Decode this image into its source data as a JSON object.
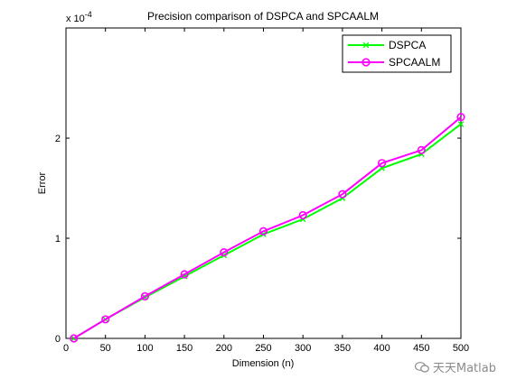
{
  "chart_data": {
    "type": "line",
    "title": "Precision comparison of DSPCA and SPCAALM",
    "xlabel": "Dimension (n)",
    "ylabel": "Error",
    "y_exponent_label": "x 10",
    "y_exponent_power": "-4",
    "xlim": [
      0,
      500
    ],
    "ylim": [
      0,
      3.1
    ],
    "xticks": [
      0,
      50,
      100,
      150,
      200,
      250,
      300,
      350,
      400,
      450,
      500
    ],
    "yticks": [
      0,
      1,
      2
    ],
    "grid": false,
    "legend_position": "top-right",
    "x": [
      10,
      50,
      100,
      150,
      200,
      250,
      300,
      350,
      400,
      450,
      500
    ],
    "series": [
      {
        "name": "DSPCA",
        "color": "#00ff00",
        "marker": "x",
        "values": [
          0.0,
          0.19,
          0.41,
          0.62,
          0.83,
          1.04,
          1.19,
          1.4,
          1.7,
          1.84,
          2.14
        ]
      },
      {
        "name": "SPCAALM",
        "color": "#ff00ff",
        "marker": "o",
        "values": [
          0.0,
          0.19,
          0.42,
          0.64,
          0.86,
          1.07,
          1.23,
          1.44,
          1.75,
          1.88,
          2.21
        ]
      }
    ]
  },
  "watermark": {
    "text": "天天Matlab",
    "icon": "wechat-icon"
  }
}
